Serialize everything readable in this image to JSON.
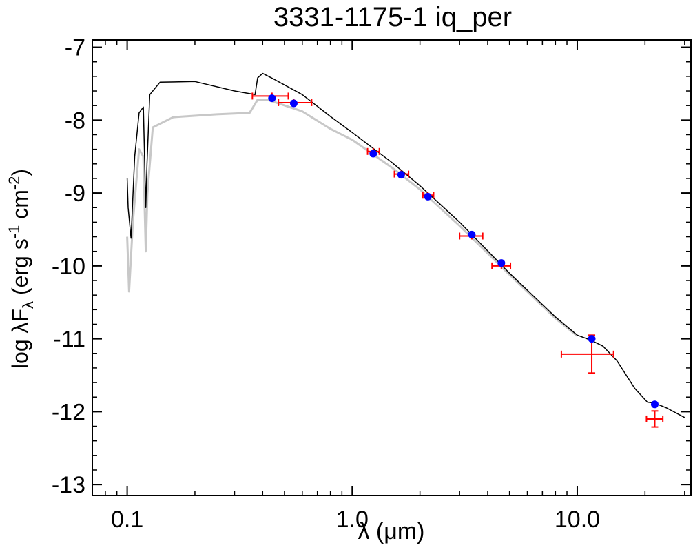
{
  "chart_data": {
    "type": "scatter",
    "title": "3331-1175-1   iq_per",
    "xlabel_parts": [
      "λ (",
      "μ",
      "m)"
    ],
    "ylabel_parts": [
      "log λF",
      "λ",
      " (erg s",
      "-1",
      " cm",
      "-2",
      ")"
    ],
    "xscale": "log",
    "xlim": [
      0.07,
      32
    ],
    "ylim": [
      -13.15,
      -6.9
    ],
    "xticks": [
      {
        "v": 0.1,
        "label": "0.1"
      },
      {
        "v": 1.0,
        "label": "1.0"
      },
      {
        "v": 10.0,
        "label": "10.0"
      }
    ],
    "yticks": [
      {
        "v": -7,
        "label": "-7"
      },
      {
        "v": -8,
        "label": "-8"
      },
      {
        "v": -9,
        "label": "-9"
      },
      {
        "v": -10,
        "label": "-10"
      },
      {
        "v": -11,
        "label": "-11"
      },
      {
        "v": -12,
        "label": "-12"
      },
      {
        "v": -13,
        "label": "-13"
      }
    ],
    "grid": false,
    "colors": {
      "model": "#000000",
      "reddened_model": "#c8c8c8",
      "model_points": "#0000ff",
      "observed": "#ff0000"
    },
    "series": [
      {
        "kind": "model-points",
        "x": [
          0.44,
          0.55,
          1.24,
          1.65,
          2.17,
          3.4,
          4.6,
          11.6,
          22.1
        ],
        "y": [
          -7.7,
          -7.77,
          -8.46,
          -8.75,
          -9.05,
          -9.57,
          -9.96,
          -11.0,
          -11.9
        ]
      },
      {
        "kind": "observed-photometry",
        "x": [
          0.44,
          0.55,
          1.24,
          1.65,
          2.17,
          3.4,
          4.6,
          11.6,
          22.1
        ],
        "y": [
          -7.67,
          -7.76,
          -8.43,
          -8.74,
          -9.03,
          -9.59,
          -10.0,
          -11.21,
          -12.1
        ],
        "x_err_low": [
          0.36,
          0.47,
          1.17,
          1.54,
          2.06,
          3.0,
          4.18,
          8.5,
          20.3
        ],
        "x_err_high": [
          0.52,
          0.66,
          1.32,
          1.78,
          2.3,
          3.8,
          5.05,
          14.5,
          24.0
        ],
        "y_err": [
          0,
          0,
          0,
          0,
          0,
          0,
          0,
          0.26,
          0.11
        ]
      }
    ]
  }
}
